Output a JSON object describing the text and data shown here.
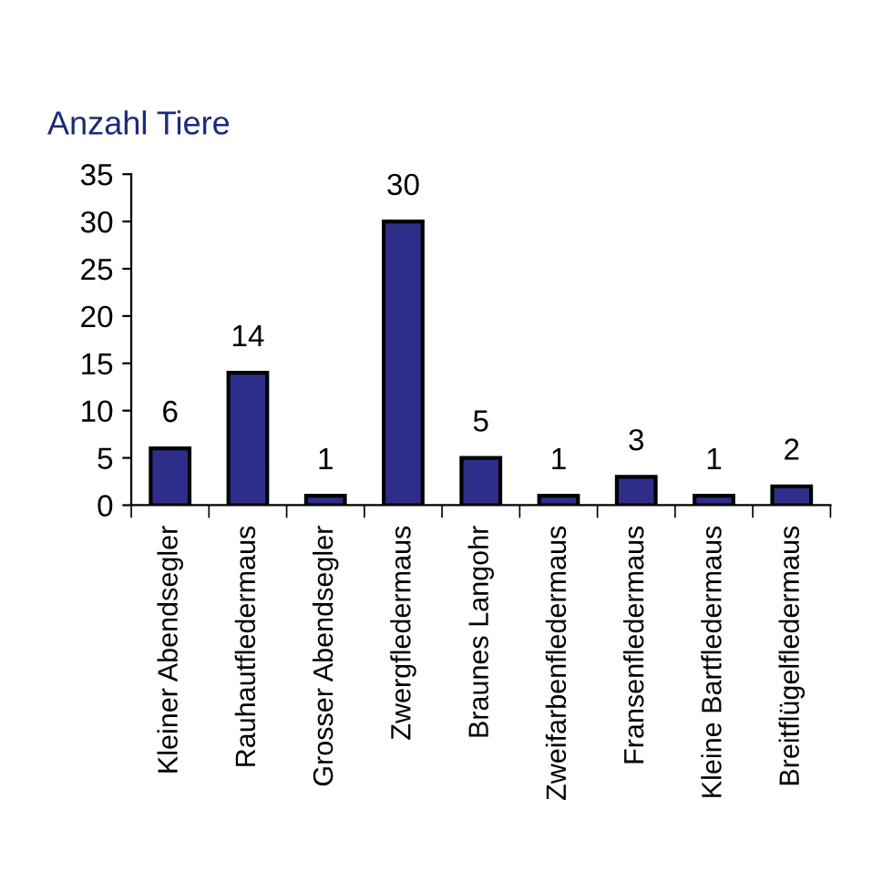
{
  "chart_data": {
    "type": "bar",
    "ylabel": "Anzahl Tiere",
    "categories": [
      "Kleiner Abendsegler",
      "Rauhautfledermaus",
      "Grosser Abendsegler",
      "Zwergfledermaus",
      "Braunes Langohr",
      "Zweifarbenfledermaus",
      "Fransenfledermaus",
      "Kleine Bartfledermaus",
      "Breitflügelfledermaus"
    ],
    "values": [
      6,
      14,
      1,
      30,
      5,
      1,
      3,
      1,
      2
    ],
    "color": "#2e2e8a",
    "ylim": [
      0,
      35
    ],
    "yticks": [
      0,
      5,
      10,
      15,
      20,
      25,
      30,
      35
    ],
    "grid": false,
    "data_labels": true
  }
}
